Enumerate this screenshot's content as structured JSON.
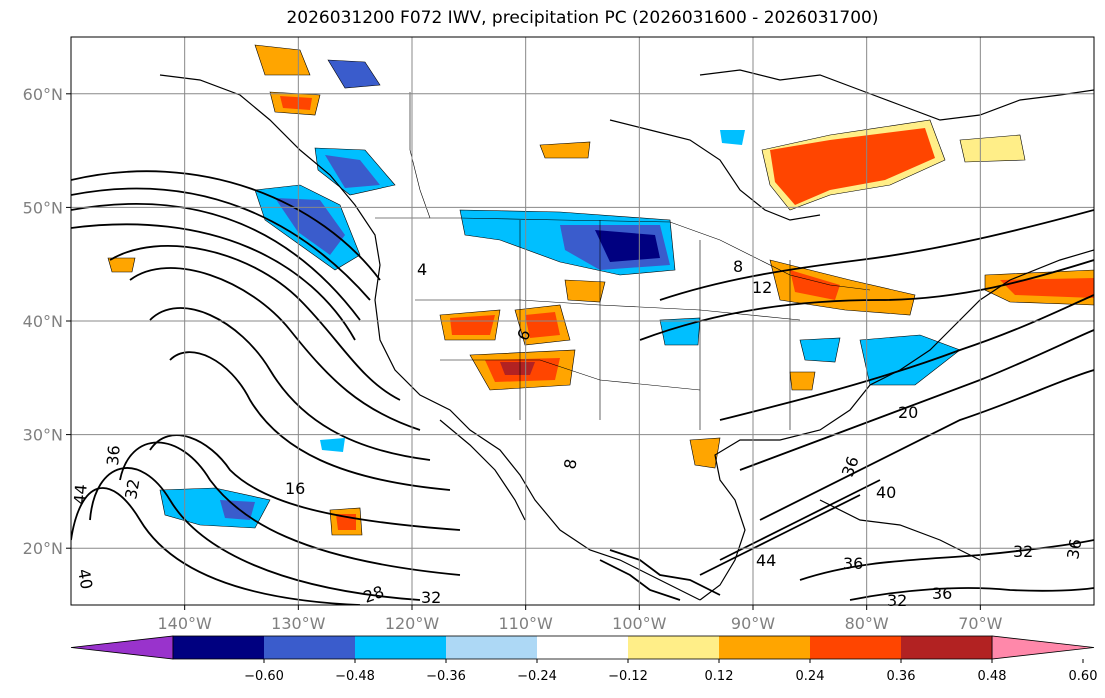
{
  "title": "2026031200 F072 IWV, precipitation PC (2026031600 - 2026031700)",
  "map": {
    "lon_range": [
      -150,
      -60
    ],
    "lat_range": [
      15,
      65
    ],
    "lon_ticks": [
      {
        "value": -140,
        "label": "140°W"
      },
      {
        "value": -130,
        "label": "130°W"
      },
      {
        "value": -120,
        "label": "120°W"
      },
      {
        "value": -110,
        "label": "110°W"
      },
      {
        "value": -100,
        "label": "100°W"
      },
      {
        "value": -90,
        "label": "90°W"
      },
      {
        "value": -80,
        "label": "80°W"
      },
      {
        "value": -70,
        "label": "70°W"
      }
    ],
    "lat_ticks": [
      {
        "value": 60,
        "label": "60°N"
      },
      {
        "value": 50,
        "label": "50°N"
      },
      {
        "value": 40,
        "label": "40°N"
      },
      {
        "value": 30,
        "label": "30°N"
      },
      {
        "value": 20,
        "label": "20°N"
      }
    ],
    "gridlines": true,
    "contour_labels": [
      "36",
      "32",
      "44",
      "40",
      "16",
      "28",
      "32",
      "4",
      "8",
      "12",
      "8",
      "6",
      "20",
      "36",
      "44",
      "40",
      "36",
      "36",
      "32",
      "32",
      "36"
    ]
  },
  "colorbar": {
    "extend": "both",
    "colors": [
      "#9933cc",
      "#000080",
      "#3a5ccc",
      "#00bfff",
      "#add8f5",
      "#ffffff",
      "#ffee88",
      "#ffa500",
      "#ff4500",
      "#b22222",
      "#ff88aa"
    ],
    "tick_labels": [
      "−0.60",
      "−0.48",
      "−0.36",
      "−0.24",
      "−0.12",
      "0.12",
      "0.24",
      "0.36",
      "0.48",
      "0.60"
    ]
  }
}
